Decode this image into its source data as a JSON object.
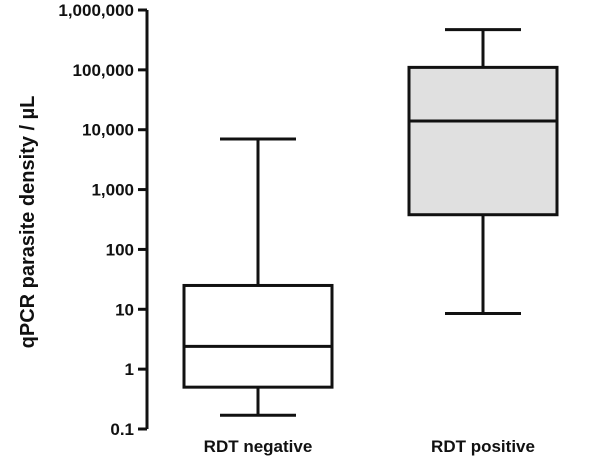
{
  "chart_data": {
    "type": "boxplot",
    "title": "",
    "xlabel": "",
    "ylabel": "qPCR parasite density / µL",
    "yscale": "log",
    "ylim": [
      0.1,
      1000000
    ],
    "yticks": [
      0.1,
      1,
      10,
      100,
      1000,
      10000,
      100000,
      1000000
    ],
    "ytick_labels": [
      "0.1",
      "1",
      "10",
      "100",
      "1,000",
      "10,000",
      "100,000",
      "1,000,000"
    ],
    "categories": [
      "RDT negative",
      "RDT positive"
    ],
    "boxes": [
      {
        "category": "RDT negative",
        "whisker_low": 0.17,
        "q1": 0.5,
        "median": 2.4,
        "q3": 25,
        "whisker_high": 7000,
        "fill": "#ffffff"
      },
      {
        "category": "RDT positive",
        "whisker_low": 8.5,
        "q1": 380,
        "median": 14000,
        "q3": 110000,
        "whisker_high": 470000,
        "fill": "#e0e0e0"
      }
    ],
    "grid": false,
    "legend": "none"
  }
}
